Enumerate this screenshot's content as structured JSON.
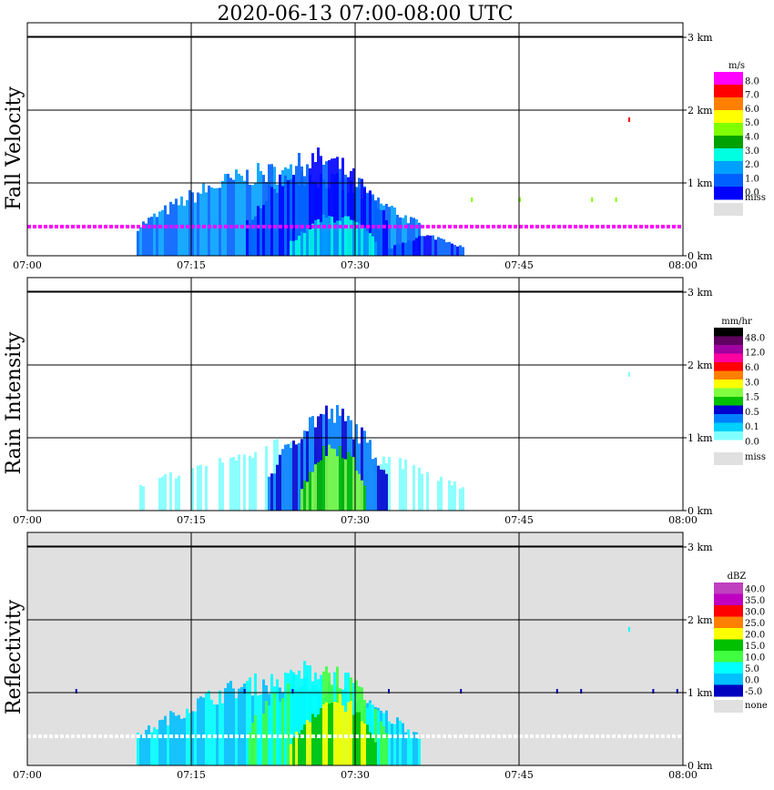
{
  "title": "2020-06-13   07:00-08:00 UTC",
  "chart_data": [
    {
      "type": "heatmap",
      "ylabel": "Fall Velocity",
      "x_ticks": [
        "07:00",
        "07:15",
        "07:30",
        "07:45",
        "08:00"
      ],
      "y_ticks": [
        "0 km",
        "1 km",
        "2 km",
        "3 km"
      ],
      "ylim_km": [
        0,
        3.2
      ],
      "xlim_min": [
        0,
        60
      ],
      "grid": true,
      "background": "#ffffff",
      "colorbar": {
        "unit": "m/s",
        "labels": [
          "8.0",
          "7.0",
          "6.0",
          "5.0",
          "4.0",
          "3.0",
          "2.0",
          "1.0",
          "0.0"
        ],
        "colors": [
          "#ff00ff",
          "#ff0000",
          "#ff7f00",
          "#ffff00",
          "#80ff00",
          "#00a000",
          "#00ffe0",
          "#00a0ff",
          "#0060ff",
          "#0000ff"
        ],
        "missing_label": "miss",
        "missing_color": "#e0e0e0"
      },
      "features": [
        {
          "kind": "band",
          "min": [
            10,
            36
          ],
          "top_km": 1.3,
          "level": 7
        },
        {
          "kind": "band",
          "min": [
            20,
            33
          ],
          "top_km": 1.5,
          "level": 8
        },
        {
          "kind": "band",
          "min": [
            24,
            32
          ],
          "top_km": 0.6,
          "level": 6
        },
        {
          "kind": "band",
          "min": [
            33,
            40
          ],
          "top_km": 0.3,
          "level": 8
        },
        {
          "kind": "line",
          "min": [
            0,
            60
          ],
          "km": 0.4,
          "level": 0,
          "dashed": true
        },
        {
          "kind": "dots",
          "min": [
            34,
            60
          ],
          "km": 0.8,
          "level": 4
        },
        {
          "kind": "dot",
          "min": 55,
          "km": 1.9,
          "level": 1
        }
      ]
    },
    {
      "type": "heatmap",
      "ylabel": "Rain Intensity",
      "x_ticks": [
        "07:00",
        "07:15",
        "07:30",
        "07:45",
        "08:00"
      ],
      "y_ticks": [
        "0 km",
        "1 km",
        "2 km",
        "3 km"
      ],
      "ylim_km": [
        0,
        3.2
      ],
      "xlim_min": [
        0,
        60
      ],
      "grid": true,
      "background": "#ffffff",
      "colorbar": {
        "unit": "mm/hr",
        "labels": [
          "48.0",
          "12.0",
          "6.0",
          "3.0",
          "1.5",
          "0.5",
          "0.1",
          "0.0"
        ],
        "colors": [
          "#000000",
          "#600060",
          "#a000a0",
          "#ff00a0",
          "#ff0000",
          "#ff8000",
          "#ffff00",
          "#80ff40",
          "#00c000",
          "#0000d0",
          "#0080ff",
          "#00d0ff",
          "#80ffff",
          "#ffffff"
        ],
        "missing_label": "miss",
        "missing_color": "#e0e0e0"
      },
      "features": [
        {
          "kind": "band",
          "min": [
            10,
            40
          ],
          "top_km": 1.0,
          "level": 12
        },
        {
          "kind": "band",
          "min": [
            22,
            33
          ],
          "top_km": 1.5,
          "level": 9
        },
        {
          "kind": "band",
          "min": [
            25,
            31
          ],
          "top_km": 1.0,
          "level": 7
        },
        {
          "kind": "dot",
          "min": 55,
          "km": 1.9,
          "level": 12
        }
      ]
    },
    {
      "type": "heatmap",
      "ylabel": "Reflectivity",
      "x_ticks": [
        "07:00",
        "07:15",
        "07:30",
        "07:45",
        "08:00"
      ],
      "y_ticks": [
        "0 km",
        "1 km",
        "2 km",
        "3 km"
      ],
      "ylim_km": [
        0,
        3.2
      ],
      "xlim_min": [
        0,
        60
      ],
      "grid": true,
      "background": "#e0e0e0",
      "colorbar": {
        "unit": "dBZ",
        "labels": [
          "40.0",
          "35.0",
          "30.0",
          "25.0",
          "20.0",
          "15.0",
          "10.0",
          "5.0",
          "0.0",
          "-5.0"
        ],
        "colors": [
          "#c040c0",
          "#c000c0",
          "#ff0000",
          "#ff7f00",
          "#ffff00",
          "#00c000",
          "#40ff40",
          "#00ffff",
          "#00c0ff",
          "#0000c0"
        ],
        "missing_label": "none",
        "missing_color": "#e0e0e0"
      },
      "features": [
        {
          "kind": "band",
          "min": [
            10,
            36
          ],
          "top_km": 1.3,
          "level": 7
        },
        {
          "kind": "band",
          "min": [
            20,
            33
          ],
          "top_km": 1.5,
          "level": 6
        },
        {
          "kind": "band",
          "min": [
            24,
            32
          ],
          "top_km": 1.0,
          "level": 4
        },
        {
          "kind": "line",
          "min": [
            0,
            60
          ],
          "km": 0.4,
          "level": -1,
          "dashed": true
        },
        {
          "kind": "dots",
          "min": [
            0,
            60
          ],
          "km": 1.05,
          "level": 9
        },
        {
          "kind": "dot",
          "min": 55,
          "km": 1.9,
          "level": 7
        }
      ]
    }
  ]
}
